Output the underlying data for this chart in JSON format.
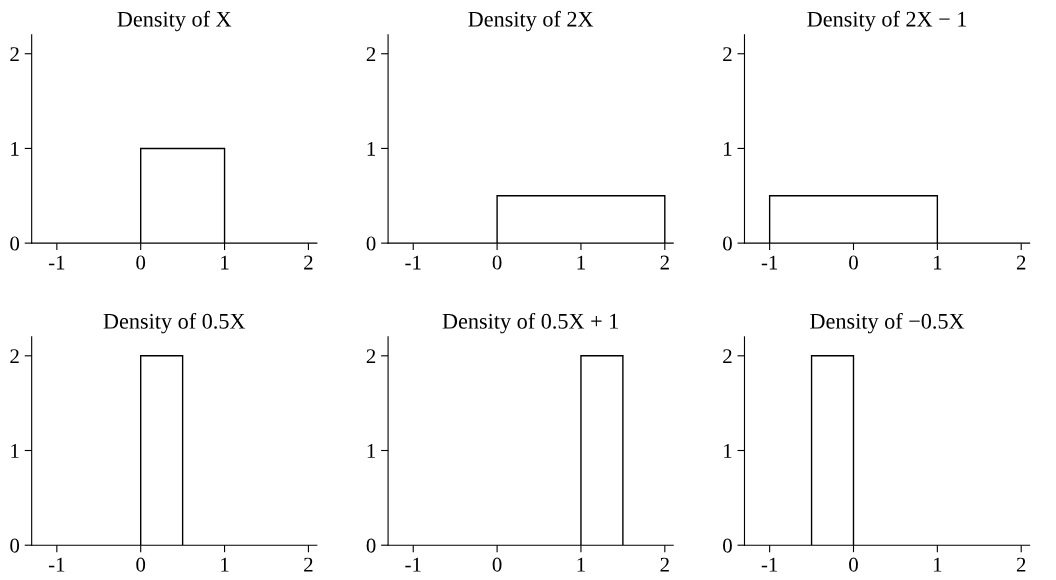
{
  "chart_data": [
    {
      "type": "histogram",
      "title": "Density of X",
      "bins": [
        0,
        1
      ],
      "values": [
        1
      ],
      "color": "#000000",
      "xlim": [
        -1.3,
        2.1
      ],
      "ylim": [
        0,
        2.2
      ],
      "xticks": [
        -1,
        0,
        1,
        2
      ],
      "yticks": [
        0,
        1,
        2
      ],
      "grid": false,
      "legend": false
    },
    {
      "type": "histogram",
      "title": "Density of 2X",
      "bins": [
        0,
        2
      ],
      "values": [
        0.5
      ],
      "color": "#000000",
      "xlim": [
        -1.3,
        2.1
      ],
      "ylim": [
        0,
        2.2
      ],
      "xticks": [
        -1,
        0,
        1,
        2
      ],
      "yticks": [
        0,
        1,
        2
      ],
      "grid": false,
      "legend": false
    },
    {
      "type": "histogram",
      "title": "Density of 2X − 1",
      "bins": [
        -1,
        1
      ],
      "values": [
        0.5
      ],
      "color": "#000000",
      "xlim": [
        -1.3,
        2.1
      ],
      "ylim": [
        0,
        2.2
      ],
      "xticks": [
        -1,
        0,
        1,
        2
      ],
      "yticks": [
        0,
        1,
        2
      ],
      "grid": false,
      "legend": false
    },
    {
      "type": "histogram",
      "title": "Density of 0.5X",
      "bins": [
        0,
        0.5
      ],
      "values": [
        2
      ],
      "color": "#000000",
      "xlim": [
        -1.3,
        2.1
      ],
      "ylim": [
        0,
        2.2
      ],
      "xticks": [
        -1,
        0,
        1,
        2
      ],
      "yticks": [
        0,
        1,
        2
      ],
      "grid": false,
      "legend": false
    },
    {
      "type": "histogram",
      "title": "Density of 0.5X + 1",
      "bins": [
        1,
        1.5
      ],
      "values": [
        2
      ],
      "color": "#000000",
      "xlim": [
        -1.3,
        2.1
      ],
      "ylim": [
        0,
        2.2
      ],
      "xticks": [
        -1,
        0,
        1,
        2
      ],
      "yticks": [
        0,
        1,
        2
      ],
      "grid": false,
      "legend": false
    },
    {
      "type": "histogram",
      "title": "Density of −0.5X",
      "bins": [
        -0.5,
        0
      ],
      "values": [
        2
      ],
      "color": "#000000",
      "xlim": [
        -1.3,
        2.1
      ],
      "ylim": [
        0,
        2.2
      ],
      "xticks": [
        -1,
        0,
        1,
        2
      ],
      "yticks": [
        0,
        1,
        2
      ],
      "grid": false,
      "legend": false
    }
  ]
}
